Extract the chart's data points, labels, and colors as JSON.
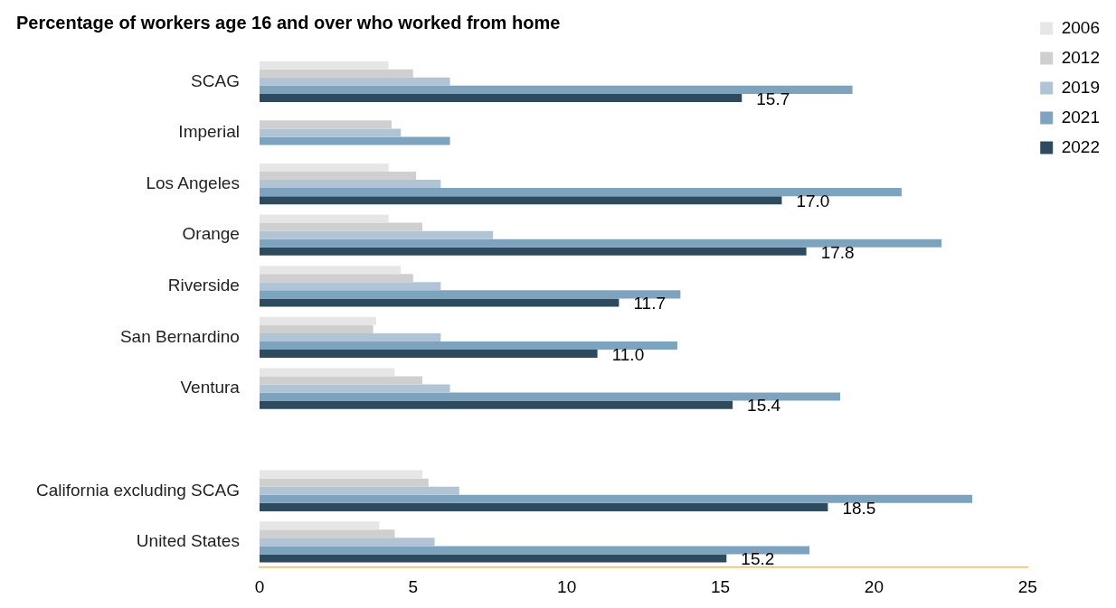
{
  "chart_data": {
    "type": "bar",
    "orientation": "horizontal",
    "title": "Percentage of workers age 16 and over who worked from home",
    "categories": [
      "SCAG",
      "Imperial",
      "Los Angeles",
      "Orange",
      "Riverside",
      "San Bernardino",
      "Ventura",
      null,
      "California excluding SCAG",
      "United States"
    ],
    "series": [
      {
        "name": "2006",
        "color": "#e6e6e6",
        "values": [
          4.2,
          null,
          4.2,
          4.2,
          4.6,
          3.8,
          4.4,
          null,
          5.3,
          3.9
        ]
      },
      {
        "name": "2012",
        "color": "#cfcfcf",
        "values": [
          5.0,
          4.3,
          5.1,
          5.3,
          5.0,
          3.7,
          5.3,
          null,
          5.5,
          4.4
        ]
      },
      {
        "name": "2019",
        "color": "#b0c4d6",
        "values": [
          6.2,
          4.6,
          5.9,
          7.6,
          5.9,
          5.9,
          6.2,
          null,
          6.5,
          5.7
        ]
      },
      {
        "name": "2021",
        "color": "#7ea3bf",
        "values": [
          19.3,
          6.2,
          20.9,
          22.2,
          13.7,
          13.6,
          18.9,
          null,
          23.2,
          17.9
        ]
      },
      {
        "name": "2022",
        "color": "#2e4a5f",
        "values": [
          15.7,
          null,
          17.0,
          17.8,
          11.7,
          11.0,
          15.4,
          null,
          18.5,
          15.2
        ],
        "value_labels": [
          "15.7",
          null,
          "17.0",
          "17.8",
          "11.7",
          "11.0",
          "15.4",
          null,
          "18.5",
          "15.2"
        ]
      }
    ],
    "xlim": [
      0,
      25
    ],
    "xticks": [
      0,
      5,
      10,
      15,
      20,
      25
    ],
    "grid": false,
    "legend": "top right"
  }
}
